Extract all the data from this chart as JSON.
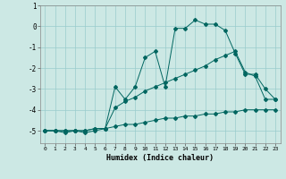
{
  "xlabel": "Humidex (Indice chaleur)",
  "bg_color": "#cce8e4",
  "line_color": "#006660",
  "grid_color": "#99cccc",
  "xlim": [
    -0.5,
    23.5
  ],
  "ylim": [
    -5.6,
    0.9
  ],
  "yticks": [
    1,
    0,
    -1,
    -2,
    -3,
    -4,
    -5
  ],
  "xticks": [
    0,
    1,
    2,
    3,
    4,
    5,
    6,
    7,
    8,
    9,
    10,
    11,
    12,
    13,
    14,
    15,
    16,
    17,
    18,
    19,
    20,
    21,
    22,
    23
  ],
  "curve_bottom_x": [
    0,
    1,
    2,
    3,
    4,
    5,
    6,
    7,
    8,
    9,
    10,
    11,
    12,
    13,
    14,
    15,
    16,
    17,
    18,
    19,
    20,
    21,
    22,
    23
  ],
  "curve_bottom_y": [
    -5.0,
    -5.0,
    -5.0,
    -5.0,
    -5.0,
    -4.9,
    -4.9,
    -4.8,
    -4.7,
    -4.7,
    -4.6,
    -4.5,
    -4.4,
    -4.4,
    -4.3,
    -4.3,
    -4.2,
    -4.2,
    -4.1,
    -4.1,
    -4.0,
    -4.0,
    -4.0,
    -4.0
  ],
  "curve_mid_x": [
    0,
    1,
    2,
    3,
    4,
    5,
    6,
    7,
    8,
    9,
    10,
    11,
    12,
    13,
    14,
    15,
    16,
    17,
    18,
    19,
    20,
    21,
    22,
    23
  ],
  "curve_mid_y": [
    -5.0,
    -5.0,
    -5.0,
    -5.0,
    -5.0,
    -4.9,
    -4.9,
    -3.9,
    -3.6,
    -3.4,
    -3.1,
    -2.9,
    -2.7,
    -2.5,
    -2.3,
    -2.1,
    -1.9,
    -1.6,
    -1.4,
    -1.2,
    -2.2,
    -2.4,
    -3.5,
    -3.5
  ],
  "curve_top_x": [
    0,
    1,
    2,
    3,
    4,
    5,
    6,
    7,
    8,
    9,
    10,
    11,
    12,
    13,
    14,
    15,
    16,
    17,
    18,
    19,
    20,
    21,
    22,
    23
  ],
  "curve_top_y": [
    -5.0,
    -5.0,
    -5.1,
    -5.0,
    -5.1,
    -5.0,
    -4.9,
    -2.9,
    -3.5,
    -2.9,
    -1.5,
    -1.2,
    -2.9,
    -0.1,
    -0.1,
    0.3,
    0.1,
    0.1,
    -0.2,
    -1.3,
    -2.3,
    -2.3,
    -3.0,
    -3.5
  ]
}
